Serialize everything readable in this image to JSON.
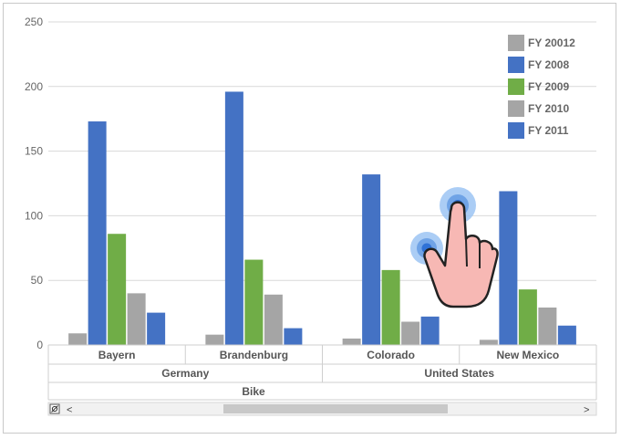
{
  "chart_data": {
    "type": "bar",
    "ylim": [
      0,
      250
    ],
    "yticks": [
      0,
      50,
      100,
      150,
      200,
      250
    ],
    "categories": [
      "Bayern",
      "Brandenburg",
      "Colorado",
      "New Mexico"
    ],
    "groups": [
      {
        "label": "Germany",
        "categories": [
          "Bayern",
          "Brandenburg"
        ]
      },
      {
        "label": "United States",
        "categories": [
          "Colorado",
          "New Mexico"
        ]
      }
    ],
    "top_label": "Bike",
    "series": [
      {
        "name": "FY 20012",
        "color": "#a5a5a5",
        "values": [
          9,
          8,
          5,
          4
        ]
      },
      {
        "name": "FY 2008",
        "color": "#4472c4",
        "values": [
          173,
          196,
          132,
          119
        ]
      },
      {
        "name": "FY 2009",
        "color": "#70ad47",
        "values": [
          86,
          66,
          58,
          43
        ]
      },
      {
        "name": "FY 2010",
        "color": "#a5a5a5",
        "values": [
          40,
          39,
          18,
          29
        ]
      },
      {
        "name": "FY 2011",
        "color": "#4472c4",
        "values": [
          25,
          13,
          22,
          15
        ]
      }
    ],
    "legend_position": "top-right",
    "grid": true
  },
  "scrollbar": {
    "left_arrow": "<",
    "right_arrow": ">",
    "reset_icon": "zoom-reset-icon",
    "position_fraction": 0.45
  },
  "gesture_icon": "touch-hand-icon"
}
